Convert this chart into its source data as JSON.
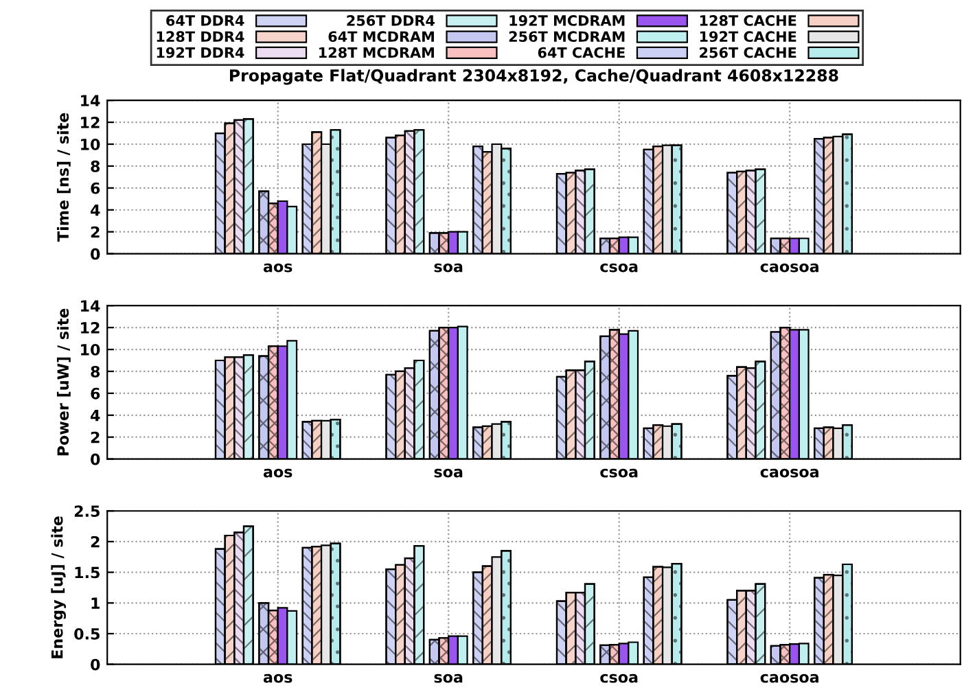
{
  "chart_data": [
    {
      "type": "bar",
      "title": "Propagate Flat/Quadrant 2304x8192, Cache/Quadrant 4608x12288",
      "ylabel": "Time [ns] / site",
      "categories": [
        "aos",
        "soa",
        "csoa",
        "caosoa"
      ],
      "ylim": [
        0,
        14
      ],
      "yticks": [
        0,
        2,
        4,
        6,
        8,
        10,
        12,
        14
      ],
      "grid": true,
      "legend": "top",
      "series": [
        {
          "name": "64T DDR4",
          "color": "#d0d4f4",
          "values": [
            11.0,
            10.6,
            7.3,
            7.4
          ]
        },
        {
          "name": "128T DDR4",
          "color": "#f6d4cc",
          "values": [
            11.9,
            10.8,
            7.4,
            7.5
          ]
        },
        {
          "name": "192T DDR4",
          "color": "#ecdcf2",
          "values": [
            12.2,
            11.2,
            7.6,
            7.6
          ]
        },
        {
          "name": "256T DDR4",
          "color": "#c8f0f0",
          "values": [
            12.3,
            11.3,
            7.7,
            7.7
          ]
        },
        {
          "name": "64T MCDRAM",
          "color": "#c4c8f0",
          "values": [
            5.7,
            1.9,
            1.4,
            1.4
          ]
        },
        {
          "name": "128T MCDRAM",
          "color": "#f8c0c0",
          "values": [
            4.6,
            1.9,
            1.4,
            1.4
          ]
        },
        {
          "name": "192T MCDRAM",
          "color": "#9955ee",
          "values": [
            4.8,
            2.0,
            1.5,
            1.4
          ]
        },
        {
          "name": "256T MCDRAM",
          "color": "#bff0f0",
          "values": [
            4.3,
            2.0,
            1.5,
            1.4
          ]
        },
        {
          "name": "64T CACHE",
          "color": "#ccd0f4",
          "values": [
            10.0,
            9.8,
            9.5,
            10.5
          ]
        },
        {
          "name": "128T CACHE",
          "color": "#f6d0c4",
          "values": [
            11.1,
            9.3,
            9.8,
            10.6
          ]
        },
        {
          "name": "192T CACHE",
          "color": "#e6e6e6",
          "values": [
            10.0,
            10.0,
            9.9,
            10.7
          ]
        },
        {
          "name": "256T CACHE",
          "color": "#b8ecec",
          "values": [
            11.3,
            9.6,
            9.9,
            10.9
          ]
        }
      ]
    },
    {
      "type": "bar",
      "ylabel": "Power [uW] / site",
      "categories": [
        "aos",
        "soa",
        "csoa",
        "caosoa"
      ],
      "ylim": [
        0,
        14
      ],
      "yticks": [
        0,
        2,
        4,
        6,
        8,
        10,
        12,
        14
      ],
      "grid": true,
      "series": [
        {
          "name": "64T DDR4",
          "color": "#d0d4f4",
          "values": [
            9.0,
            7.7,
            7.5,
            7.6
          ]
        },
        {
          "name": "128T DDR4",
          "color": "#f6d4cc",
          "values": [
            9.3,
            8.0,
            8.1,
            8.4
          ]
        },
        {
          "name": "192T DDR4",
          "color": "#ecdcf2",
          "values": [
            9.3,
            8.3,
            8.1,
            8.3
          ]
        },
        {
          "name": "256T DDR4",
          "color": "#c8f0f0",
          "values": [
            9.5,
            9.0,
            8.9,
            8.9
          ]
        },
        {
          "name": "64T MCDRAM",
          "color": "#c4c8f0",
          "values": [
            9.4,
            11.7,
            11.2,
            11.6
          ]
        },
        {
          "name": "128T MCDRAM",
          "color": "#f8c0c0",
          "values": [
            10.3,
            12.0,
            11.8,
            12.0
          ]
        },
        {
          "name": "192T MCDRAM",
          "color": "#9955ee",
          "values": [
            10.3,
            12.0,
            11.4,
            11.8
          ]
        },
        {
          "name": "256T MCDRAM",
          "color": "#bff0f0",
          "values": [
            10.8,
            12.1,
            11.7,
            11.8
          ]
        },
        {
          "name": "64T CACHE",
          "color": "#ccd0f4",
          "values": [
            3.4,
            2.9,
            2.8,
            2.8
          ]
        },
        {
          "name": "128T CACHE",
          "color": "#f6d0c4",
          "values": [
            3.5,
            3.0,
            3.1,
            2.9
          ]
        },
        {
          "name": "192T CACHE",
          "color": "#e6e6e6",
          "values": [
            3.5,
            3.2,
            3.0,
            2.8
          ]
        },
        {
          "name": "256T CACHE",
          "color": "#b8ecec",
          "values": [
            3.6,
            3.4,
            3.2,
            3.1
          ]
        }
      ]
    },
    {
      "type": "bar",
      "ylabel": "Energy [uJ] / site",
      "categories": [
        "aos",
        "soa",
        "csoa",
        "caosoa"
      ],
      "ylim": [
        0,
        2.5
      ],
      "yticks": [
        0,
        0.5,
        1,
        1.5,
        2,
        2.5
      ],
      "grid": true,
      "series": [
        {
          "name": "64T DDR4",
          "color": "#d0d4f4",
          "values": [
            1.88,
            1.55,
            1.03,
            1.05
          ]
        },
        {
          "name": "128T DDR4",
          "color": "#f6d4cc",
          "values": [
            2.1,
            1.62,
            1.17,
            1.2
          ]
        },
        {
          "name": "192T DDR4",
          "color": "#ecdcf2",
          "values": [
            2.15,
            1.73,
            1.17,
            1.2
          ]
        },
        {
          "name": "256T DDR4",
          "color": "#c8f0f0",
          "values": [
            2.25,
            1.93,
            1.31,
            1.31
          ]
        },
        {
          "name": "64T MCDRAM",
          "color": "#c4c8f0",
          "values": [
            1.0,
            0.4,
            0.31,
            0.3
          ]
        },
        {
          "name": "128T MCDRAM",
          "color": "#f8c0c0",
          "values": [
            0.88,
            0.43,
            0.32,
            0.32
          ]
        },
        {
          "name": "192T MCDRAM",
          "color": "#9955ee",
          "values": [
            0.92,
            0.46,
            0.34,
            0.33
          ]
        },
        {
          "name": "256T MCDRAM",
          "color": "#bff0f0",
          "values": [
            0.87,
            0.46,
            0.36,
            0.34
          ]
        },
        {
          "name": "64T CACHE",
          "color": "#ccd0f4",
          "values": [
            1.9,
            1.5,
            1.42,
            1.41
          ]
        },
        {
          "name": "128T CACHE",
          "color": "#f6d0c4",
          "values": [
            1.92,
            1.6,
            1.59,
            1.46
          ]
        },
        {
          "name": "192T CACHE",
          "color": "#e6e6e6",
          "values": [
            1.94,
            1.75,
            1.58,
            1.45
          ]
        },
        {
          "name": "256T CACHE",
          "color": "#b8ecec",
          "values": [
            1.97,
            1.85,
            1.64,
            1.63
          ]
        }
      ]
    }
  ]
}
